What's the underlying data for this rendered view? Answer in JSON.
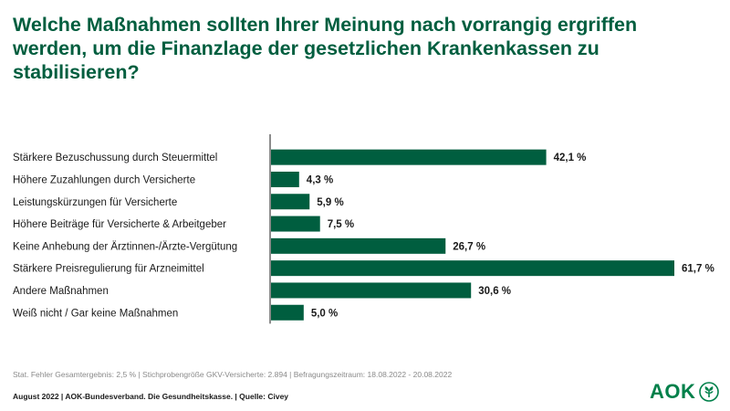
{
  "title": "Welche Maßnahmen sollten Ihrer Meinung nach vorrangig ergriffen werden, um die Finanzlage der gesetzlichen Krankenkassen zu stabilisieren?",
  "footnote": "Stat. Fehler Gesamtergebnis: 2,5 %  |  Stichprobengröße GKV-Versicherte: 2.894  |  Befragungszeitraum: 18.08.2022 - 20.08.2022",
  "footer": "August 2022  |  AOK-Bundesverband. Die Gesundheitskasse.  |  Quelle: Civey",
  "logo": {
    "text": "AOK",
    "icon": "aok-tree-icon"
  },
  "colors": {
    "title": "#005e3f",
    "bar": "#005e3f",
    "logo": "#00804a"
  },
  "chart_data": {
    "type": "bar",
    "orientation": "horizontal",
    "categories": [
      "Stärkere Bezuschussung durch Steuermittel",
      "Höhere Zuzahlungen durch Versicherte",
      "Leistungskürzungen für Versicherte",
      "Höhere Beiträge für Versicherte & Arbeitgeber",
      "Keine Anhebung der Ärztinnen-/Ärzte-Vergütung",
      "Stärkere Preisregulierung für Arzneimittel",
      "Andere Maßnahmen",
      "Weiß nicht / Gar keine Maßnahmen"
    ],
    "values": [
      42.1,
      4.3,
      5.9,
      7.5,
      26.7,
      61.7,
      30.6,
      5.0
    ],
    "value_labels": [
      "42,1 %",
      "4,3 %",
      "5,9 %",
      "7,5 %",
      "26,7 %",
      "61,7 %",
      "30,6 %",
      "5,0 %"
    ],
    "xlim": [
      0,
      61.7
    ],
    "grid": false,
    "legend": "none"
  }
}
